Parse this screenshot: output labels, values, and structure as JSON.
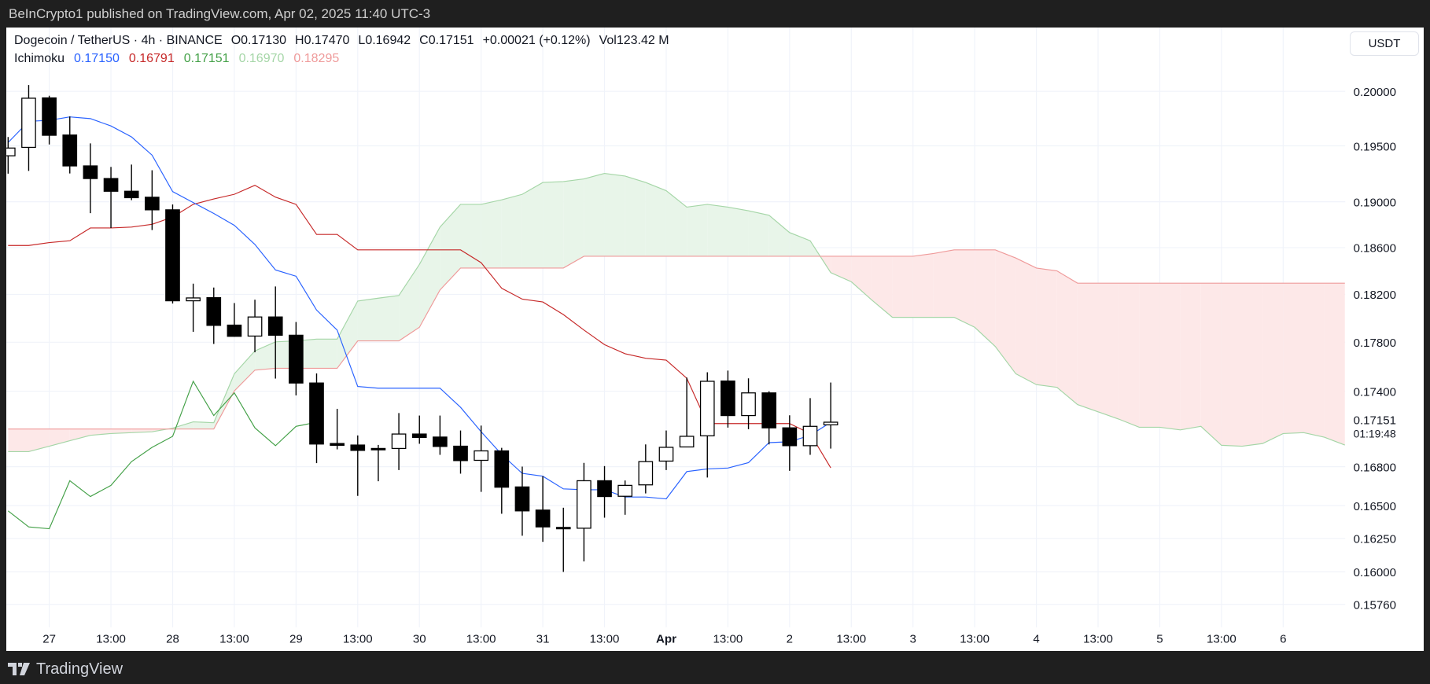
{
  "topbar": {
    "text": "BeInCrypto1 published on TradingView.com, Apr 02, 2025 11:40 UTC-3"
  },
  "header": {
    "symbol": "Dogecoin / TetherUS · 4h · BINANCE",
    "open_label": "O",
    "open": "0.17130",
    "high_label": "H",
    "high": "0.17470",
    "low_label": "L",
    "low": "0.16942",
    "close_label": "C",
    "close": "0.17151",
    "change": "+0.00021 (+0.12%)",
    "vol_label": "Vol",
    "vol": "123.42 M"
  },
  "legend": {
    "name": "Ichimoku",
    "tenkan": "0.17150",
    "kijun": "0.16791",
    "chikou": "0.17151",
    "span_a": "0.16970",
    "span_b": "0.18295"
  },
  "currency_button": "USDT",
  "footer": {
    "brand": "TradingView"
  },
  "colors": {
    "tenkan": "#2962ff",
    "kijun": "#c62828",
    "chikou": "#43a047",
    "span_a": "#a5d6a7",
    "span_b": "#ef9a9a",
    "cloud_up": "#e8f5e9",
    "cloud_down": "#fde8e8",
    "grid": "#f0f3fa"
  },
  "chart_data": {
    "type": "candlestick",
    "title": "Dogecoin / TetherUS · 4h · BINANCE",
    "scale": "log",
    "ylim": [
      0.1565,
      0.2045
    ],
    "y_ticks": [
      "0.20000",
      "0.19500",
      "0.19000",
      "0.18600",
      "0.18200",
      "0.17800",
      "0.17400",
      "0.16800",
      "0.16500",
      "0.16250",
      "0.16000",
      "0.15760"
    ],
    "current_price": "0.17151",
    "countdown": "01:19:48",
    "x_ticks": [
      {
        "bar": 0,
        "label": "27"
      },
      {
        "bar": 3,
        "label": "13:00"
      },
      {
        "bar": 6,
        "label": "28"
      },
      {
        "bar": 9,
        "label": "13:00"
      },
      {
        "bar": 12,
        "label": "29"
      },
      {
        "bar": 15,
        "label": "13:00"
      },
      {
        "bar": 18,
        "label": "30"
      },
      {
        "bar": 21,
        "label": "13:00"
      },
      {
        "bar": 24,
        "label": "31"
      },
      {
        "bar": 27,
        "label": "13:00"
      },
      {
        "bar": 30,
        "label": "Apr",
        "bold": true
      },
      {
        "bar": 33,
        "label": "13:00"
      },
      {
        "bar": 36,
        "label": "2"
      },
      {
        "bar": 39,
        "label": "13:00"
      },
      {
        "bar": 42,
        "label": "3"
      },
      {
        "bar": 45,
        "label": "13:00"
      },
      {
        "bar": 48,
        "label": "4"
      },
      {
        "bar": 51,
        "label": "13:00"
      },
      {
        "bar": 54,
        "label": "5"
      },
      {
        "bar": 57,
        "label": "13:00"
      },
      {
        "bar": 60,
        "label": "6"
      }
    ],
    "bar_start": -2,
    "candles_ohlc": [
      [
        0.1941,
        0.1958,
        0.1925,
        0.1948
      ],
      [
        0.19486,
        0.20059,
        0.19274,
        0.19936
      ],
      [
        0.19939,
        0.19959,
        0.19512,
        0.19596
      ],
      [
        0.19598,
        0.19768,
        0.19251,
        0.19319
      ],
      [
        0.19319,
        0.19522,
        0.189,
        0.19206
      ],
      [
        0.19206,
        0.1931,
        0.1877,
        0.19093
      ],
      [
        0.19093,
        0.19331,
        0.19014,
        0.19036
      ],
      [
        0.1904,
        0.1928,
        0.18752,
        0.18929
      ],
      [
        0.18929,
        0.18976,
        0.18123,
        0.18146
      ],
      [
        0.18146,
        0.18291,
        0.17886,
        0.1817
      ],
      [
        0.18172,
        0.18258,
        0.17786,
        0.1794
      ],
      [
        0.17942,
        0.18127,
        0.17845,
        0.17849
      ],
      [
        0.17851,
        0.18155,
        0.17717,
        0.1801
      ],
      [
        0.1801,
        0.18267,
        0.17502,
        0.17858
      ],
      [
        0.17858,
        0.17968,
        0.17366,
        0.17466
      ],
      [
        0.17466,
        0.17544,
        0.16828,
        0.16978
      ],
      [
        0.16982,
        0.17258,
        0.16936,
        0.16968
      ],
      [
        0.1697,
        0.17046,
        0.16574,
        0.16928
      ],
      [
        0.16943,
        0.16971,
        0.16687,
        0.16935
      ],
      [
        0.16943,
        0.17224,
        0.16774,
        0.17057
      ],
      [
        0.17057,
        0.17204,
        0.1698,
        0.1703
      ],
      [
        0.17033,
        0.17204,
        0.16893,
        0.16959
      ],
      [
        0.16961,
        0.17085,
        0.16746,
        0.16848
      ],
      [
        0.1685,
        0.17124,
        0.16605,
        0.16924
      ],
      [
        0.16924,
        0.16948,
        0.16437,
        0.16641
      ],
      [
        0.16643,
        0.16801,
        0.1627,
        0.16459
      ],
      [
        0.16465,
        0.16726,
        0.16224,
        0.16337
      ],
      [
        0.16333,
        0.16483,
        0.15999,
        0.16323
      ],
      [
        0.16327,
        0.1683,
        0.16077,
        0.16691
      ],
      [
        0.16691,
        0.16805,
        0.16407,
        0.16569
      ],
      [
        0.16571,
        0.16693,
        0.16429,
        0.16655
      ],
      [
        0.16659,
        0.16975,
        0.16593,
        0.1684
      ],
      [
        0.16844,
        0.17085,
        0.16774,
        0.16952
      ],
      [
        0.16955,
        0.1751,
        0.16955,
        0.17039
      ],
      [
        0.17043,
        0.17553,
        0.16716,
        0.1748
      ],
      [
        0.17482,
        0.17567,
        0.17108,
        0.17204
      ],
      [
        0.17204,
        0.17504,
        0.17095,
        0.17386
      ],
      [
        0.17386,
        0.17399,
        0.16975,
        0.17106
      ],
      [
        0.17106,
        0.17206,
        0.16768,
        0.16965
      ],
      [
        0.16965,
        0.17344,
        0.16893,
        0.17118
      ],
      [
        0.1713,
        0.1747,
        0.16942,
        0.17151
      ]
    ],
    "series": [
      {
        "name": "Tenkan",
        "start_bar": -2,
        "values": [
          0.1953,
          0.19723,
          0.19732,
          0.19764,
          0.19748,
          0.19681,
          0.19581,
          0.19416,
          0.1909,
          0.18993,
          0.18897,
          0.18793,
          0.18627,
          0.18408,
          0.18354,
          0.18068,
          0.17901,
          0.17438,
          0.17424,
          0.17424,
          0.17424,
          0.17424,
          0.1727,
          0.17075,
          0.16896,
          0.16748,
          0.16726,
          0.16628,
          0.16621,
          0.16621,
          0.16565,
          0.16565,
          0.16551,
          0.16762,
          0.16783,
          0.1679,
          0.16832,
          0.16989,
          0.16996,
          0.17047,
          0.1715
        ]
      },
      {
        "name": "Kijun",
        "start_bar": -2,
        "values": [
          0.18618,
          0.18618,
          0.18643,
          0.18659,
          0.1877,
          0.1877,
          0.18778,
          0.18802,
          0.18865,
          0.18977,
          0.19025,
          0.19066,
          0.19146,
          0.19041,
          0.18977,
          0.18714,
          0.18714,
          0.1858,
          0.1858,
          0.1858,
          0.1858,
          0.1858,
          0.1858,
          0.1847,
          0.18252,
          0.1816,
          0.18136,
          0.1803,
          0.17901,
          0.1778,
          0.17705,
          0.17668,
          0.17653,
          0.17505,
          0.1714,
          0.1714,
          0.1714,
          0.1714,
          0.1714,
          0.17061,
          0.16791
        ]
      },
      {
        "name": "Chikou",
        "derived": "close shifted back 25 bars"
      },
      {
        "name": "Span A",
        "start_bar": -2,
        "values": [
          0.16918,
          0.16918,
          0.16961,
          0.17004,
          0.17047,
          0.17061,
          0.17068,
          0.17075,
          0.17104,
          0.17154,
          0.17147,
          0.17541,
          0.17728,
          0.17803,
          0.17811,
          0.17826,
          0.17826,
          0.18144,
          0.18168,
          0.18191,
          0.18455,
          0.18778,
          0.18977,
          0.18977,
          0.19017,
          0.19066,
          0.19171,
          0.19179,
          0.19203,
          0.19252,
          0.19228,
          0.19171,
          0.19098,
          0.18953,
          0.18977,
          0.18953,
          0.18921,
          0.18881,
          0.1873,
          0.18659,
          0.18385,
          0.18307,
          0.18152,
          0.18007,
          0.18007,
          0.18007,
          0.18007,
          0.17924,
          0.17765,
          0.17541,
          0.17453,
          0.17431,
          0.17292,
          0.17234,
          0.17176,
          0.17111,
          0.17111,
          0.1709,
          0.17118,
          0.16968,
          0.16961,
          0.16982,
          0.17061,
          0.17068,
          0.17032,
          0.1697
        ]
      },
      {
        "name": "Span B",
        "start_bar": -2,
        "values": [
          0.17097,
          0.17097,
          0.17097,
          0.17097,
          0.17097,
          0.17097,
          0.17097,
          0.17097,
          0.17097,
          0.17097,
          0.17097,
          0.17402,
          0.17571,
          0.17586,
          0.17586,
          0.17586,
          0.17586,
          0.17811,
          0.17811,
          0.17811,
          0.17924,
          0.18237,
          0.18424,
          0.18424,
          0.18424,
          0.18424,
          0.18424,
          0.18424,
          0.18525,
          0.18525,
          0.18525,
          0.18525,
          0.18525,
          0.18525,
          0.18525,
          0.18525,
          0.18525,
          0.18525,
          0.18525,
          0.18525,
          0.18525,
          0.18525,
          0.18525,
          0.18525,
          0.18525,
          0.18549,
          0.1858,
          0.1858,
          0.1858,
          0.1851,
          0.18424,
          0.184,
          0.18295,
          0.18295,
          0.18295,
          0.18295,
          0.18295,
          0.18295,
          0.18295,
          0.18295,
          0.18295,
          0.18295,
          0.18295,
          0.18295,
          0.18295,
          0.18295
        ]
      }
    ],
    "chikou_offset": 25
  }
}
